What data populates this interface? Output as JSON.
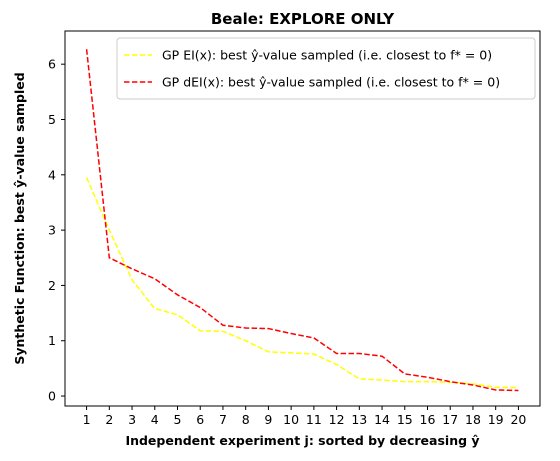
{
  "chart_data": {
    "type": "line",
    "title": "Beale: EXPLORE ONLY",
    "xlabel": "Independent experiment j: sorted by decreasing ŷ",
    "ylabel": "Synthetic Function: best ŷ-value sampled",
    "x": [
      1,
      2,
      3,
      4,
      5,
      6,
      7,
      8,
      9,
      10,
      11,
      12,
      13,
      14,
      15,
      16,
      17,
      18,
      19,
      20
    ],
    "xticks": [
      "1",
      "2",
      "3",
      "4",
      "5",
      "6",
      "7",
      "8",
      "9",
      "10",
      "11",
      "12",
      "13",
      "14",
      "15",
      "16",
      "17",
      "18",
      "19",
      "20"
    ],
    "yticks": [
      "0",
      "1",
      "2",
      "3",
      "4",
      "5",
      "6"
    ],
    "xlim": [
      0.05,
      20.95
    ],
    "ylim": [
      -0.18,
      6.6
    ],
    "grid": false,
    "legend_position": "top-right",
    "series": [
      {
        "name": "GP EI(x):   best ŷ-value sampled (i.e. closest to f* = 0)",
        "color": "#ffff00",
        "dash": "dashed",
        "values": [
          3.95,
          3.0,
          2.1,
          1.58,
          1.47,
          1.18,
          1.17,
          1.0,
          0.8,
          0.78,
          0.76,
          0.57,
          0.31,
          0.29,
          0.26,
          0.26,
          0.25,
          0.22,
          0.16,
          0.15
        ]
      },
      {
        "name": "GP dEI(x): best ŷ-value sampled (i.e. closest to f* = 0)",
        "color": "#ff0000",
        "dash": "dashed",
        "values": [
          6.27,
          2.5,
          2.3,
          2.12,
          1.83,
          1.6,
          1.28,
          1.23,
          1.22,
          1.13,
          1.05,
          0.77,
          0.77,
          0.72,
          0.4,
          0.34,
          0.26,
          0.2,
          0.11,
          0.1
        ]
      }
    ]
  }
}
